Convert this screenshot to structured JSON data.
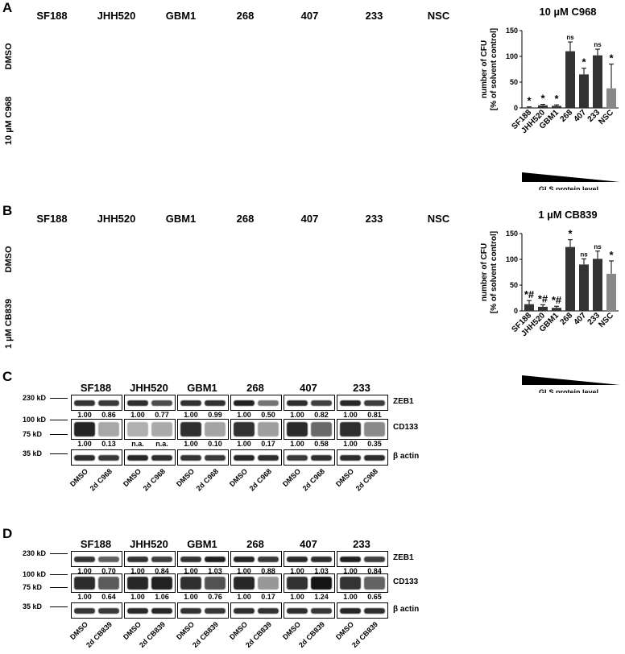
{
  "figure": {
    "panels": {
      "A": {
        "label": "A",
        "cell_lines": [
          "SF188",
          "JHH520",
          "GBM1",
          "268",
          "407",
          "233",
          "NSC"
        ],
        "rows": [
          "DMSO",
          "10 µM C968"
        ]
      },
      "B": {
        "label": "B",
        "cell_lines": [
          "SF188",
          "JHH520",
          "GBM1",
          "268",
          "407",
          "233",
          "NSC"
        ],
        "rows": [
          "DMSO",
          "1 µM CB839"
        ]
      },
      "C": {
        "label": "C",
        "cell_lines": [
          "SF188",
          "JHH520",
          "GBM1",
          "268",
          "407",
          "233"
        ],
        "kd_markers": [
          "230 kD",
          "100 kD",
          "75 kD",
          "35 kD"
        ],
        "proteins": [
          "ZEB1",
          "CD133",
          "β actin"
        ],
        "zeb1_values": [
          [
            "1.00",
            "0.86"
          ],
          [
            "1.00",
            "0.77"
          ],
          [
            "1.00",
            "0.99"
          ],
          [
            "1.00",
            "0.50"
          ],
          [
            "1.00",
            "0.82"
          ],
          [
            "1.00",
            "0.81"
          ]
        ],
        "cd133_values": [
          [
            "1.00",
            "0.13"
          ],
          [
            "n.a.",
            "n.a."
          ],
          [
            "1.00",
            "0.10"
          ],
          [
            "1.00",
            "0.17"
          ],
          [
            "1.00",
            "0.58"
          ],
          [
            "1.00",
            "0.35"
          ]
        ],
        "lanes": [
          "DMSO",
          "2d C968"
        ]
      },
      "D": {
        "label": "D",
        "cell_lines": [
          "SF188",
          "JHH520",
          "GBM1",
          "268",
          "407",
          "233"
        ],
        "kd_markers": [
          "230 kD",
          "100 kD",
          "75 kD",
          "35 kD"
        ],
        "proteins": [
          "ZEB1",
          "CD133",
          "β actin"
        ],
        "zeb1_values": [
          [
            "1.00",
            "0.70"
          ],
          [
            "1.00",
            "0.84"
          ],
          [
            "1.00",
            "1.03"
          ],
          [
            "1.00",
            "0.88"
          ],
          [
            "1.00",
            "1.03"
          ],
          [
            "1.00",
            "0.84"
          ]
        ],
        "cd133_values": [
          [
            "1.00",
            "0.64"
          ],
          [
            "1.00",
            "1.06"
          ],
          [
            "1.00",
            "0.76"
          ],
          [
            "1.00",
            "0.17"
          ],
          [
            "1.00",
            "1.24"
          ],
          [
            "1.00",
            "0.65"
          ]
        ],
        "lanes": [
          "DMSO",
          "2d CB839"
        ]
      }
    }
  },
  "chart_data": [
    {
      "type": "bar",
      "title": "10 µM C968",
      "ylabel": "number of CFU [% of solvent control]",
      "xlabel": "",
      "categories": [
        "SF188",
        "JHH520",
        "GBM1",
        "268",
        "407",
        "233",
        "NSC"
      ],
      "values": [
        1,
        5,
        4,
        110,
        65,
        102,
        38
      ],
      "errors": [
        1,
        2,
        2,
        18,
        12,
        12,
        47
      ],
      "annotations": [
        "*",
        "*",
        "*",
        "ns",
        "*",
        "ns",
        "*"
      ],
      "ylim": [
        0,
        150
      ],
      "yticks": [
        0,
        50,
        100,
        150
      ],
      "gradient_label": "GLS protein level",
      "colors": [
        "#333333",
        "#333333",
        "#333333",
        "#333333",
        "#333333",
        "#333333",
        "#888888"
      ]
    },
    {
      "type": "bar",
      "title": "1 µM CB839",
      "ylabel": "number of CFU [% of solvent control]",
      "xlabel": "",
      "categories": [
        "SF188",
        "JHH520",
        "GBM1",
        "268",
        "407",
        "233",
        "NSC"
      ],
      "values": [
        13,
        8,
        6,
        124,
        90,
        101,
        72
      ],
      "errors": [
        7,
        4,
        3,
        14,
        11,
        15,
        25
      ],
      "annotations": [
        "*#",
        "*#",
        "*#",
        "*",
        "ns",
        "ns",
        "*"
      ],
      "ylim": [
        0,
        150
      ],
      "yticks": [
        0,
        50,
        100,
        150
      ],
      "gradient_label": "GLS protein level",
      "colors": [
        "#333333",
        "#333333",
        "#333333",
        "#333333",
        "#333333",
        "#333333",
        "#888888"
      ]
    }
  ]
}
